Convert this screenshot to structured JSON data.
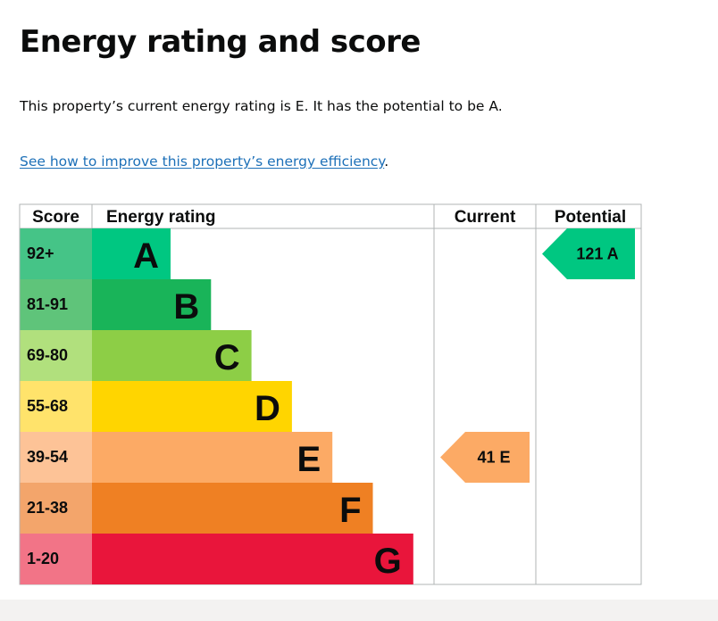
{
  "page": {
    "heading": "Energy rating and score",
    "summary": "This property’s current energy rating is E. It has the potential to be A.",
    "improve_link": "See how to improve this property’s energy efficiency",
    "improve_suffix": "."
  },
  "chart_data": {
    "type": "table",
    "headers": {
      "score": "Score",
      "rating": "Energy rating",
      "current": "Current",
      "potential": "Potential"
    },
    "bands": [
      {
        "score": "92+",
        "letter": "A",
        "color": "#45c487",
        "bar_color": "#00c781",
        "length": 1
      },
      {
        "score": "81-91",
        "letter": "B",
        "color": "#5fc47a",
        "bar_color": "#19b459",
        "length": 2
      },
      {
        "score": "69-80",
        "letter": "C",
        "color": "#b1e07d",
        "bar_color": "#8dce46",
        "length": 3
      },
      {
        "score": "55-68",
        "letter": "D",
        "color": "#ffe36b",
        "bar_color": "#ffd500",
        "length": 4
      },
      {
        "score": "39-54",
        "letter": "E",
        "color": "#fdc397",
        "bar_color": "#fcaa65",
        "length": 5
      },
      {
        "score": "21-38",
        "letter": "F",
        "color": "#f3a56b",
        "bar_color": "#ef8023",
        "length": 6
      },
      {
        "score": "1-20",
        "letter": "G",
        "color": "#f27487",
        "bar_color": "#e9153b",
        "length": 7
      }
    ],
    "current": {
      "score": 41,
      "letter": "E",
      "label": "41 E"
    },
    "potential": {
      "score": 121,
      "letter": "A",
      "label": "121 A"
    }
  }
}
